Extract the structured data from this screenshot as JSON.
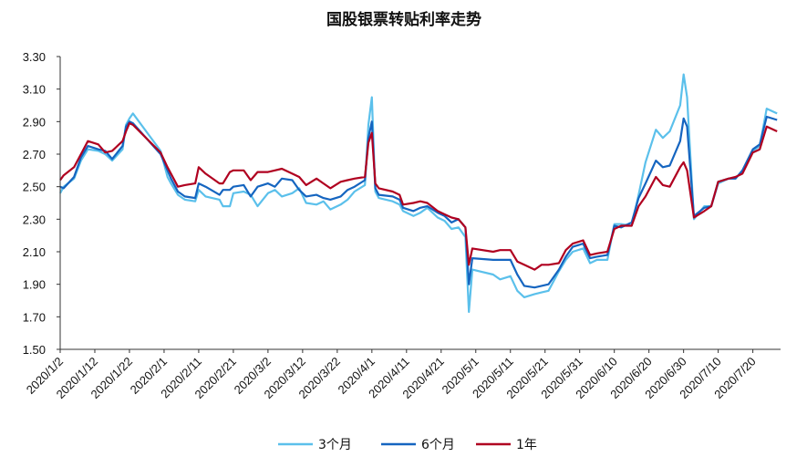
{
  "chart_data": {
    "type": "line",
    "title": "国股银票转贴利率走势",
    "xlabel": "",
    "ylabel": "",
    "ylim": [
      1.5,
      3.3
    ],
    "yticks": [
      "1.50",
      "1.70",
      "1.90",
      "2.10",
      "2.30",
      "2.50",
      "2.70",
      "2.90",
      "3.10",
      "3.30"
    ],
    "xticks": [
      "2020/1/2",
      "2020/1/12",
      "2020/1/22",
      "2020/2/1",
      "2020/2/11",
      "2020/2/21",
      "2020/3/2",
      "2020/3/12",
      "2020/3/22",
      "2020/4/1",
      "2020/4/11",
      "2020/4/21",
      "2020/5/1",
      "2020/5/11",
      "2020/5/21",
      "2020/5/31",
      "2020/6/10",
      "2020/6/20",
      "2020/6/30",
      "2020/7/10",
      "2020/7/20"
    ],
    "grid": false,
    "legend": "bottom",
    "colors": {
      "3m": "#5bc0eb",
      "6m": "#1565c0",
      "1y": "#b00020"
    },
    "series": [
      {
        "name": "3个月",
        "color": "#5bc0eb",
        "x": [
          "2020/1/2",
          "2020/1/3",
          "2020/1/6",
          "2020/1/8",
          "2020/1/10",
          "2020/1/13",
          "2020/1/15",
          "2020/1/17",
          "2020/1/20",
          "2020/1/21",
          "2020/1/22",
          "2020/1/23",
          "2020/1/31",
          "2020/2/2",
          "2020/2/3",
          "2020/2/5",
          "2020/2/7",
          "2020/2/10",
          "2020/2/11",
          "2020/2/13",
          "2020/2/17",
          "2020/2/18",
          "2020/2/20",
          "2020/2/21",
          "2020/2/24",
          "2020/2/26",
          "2020/2/28",
          "2020/3/2",
          "2020/3/4",
          "2020/3/6",
          "2020/3/9",
          "2020/3/11",
          "2020/3/13",
          "2020/3/16",
          "2020/3/18",
          "2020/3/20",
          "2020/3/23",
          "2020/3/25",
          "2020/3/27",
          "2020/3/30",
          "2020/3/31",
          "2020/4/1",
          "2020/4/2",
          "2020/4/3",
          "2020/4/7",
          "2020/4/9",
          "2020/4/10",
          "2020/4/13",
          "2020/4/15",
          "2020/4/17",
          "2020/4/20",
          "2020/4/22",
          "2020/4/24",
          "2020/4/26",
          "2020/4/28",
          "2020/4/29",
          "2020/4/30",
          "2020/5/6",
          "2020/5/8",
          "2020/5/11",
          "2020/5/13",
          "2020/5/15",
          "2020/5/18",
          "2020/5/20",
          "2020/5/22",
          "2020/5/25",
          "2020/5/27",
          "2020/5/29",
          "2020/6/1",
          "2020/6/3",
          "2020/6/5",
          "2020/6/8",
          "2020/6/10",
          "2020/6/12",
          "2020/6/15",
          "2020/6/17",
          "2020/6/19",
          "2020/6/22",
          "2020/6/24",
          "2020/6/26",
          "2020/6/29",
          "2020/6/30",
          "2020/7/1",
          "2020/7/3",
          "2020/7/6",
          "2020/7/8",
          "2020/7/10",
          "2020/7/13",
          "2020/7/15",
          "2020/7/17",
          "2020/7/20",
          "2020/7/22",
          "2020/7/24",
          "2020/7/27"
        ],
        "values": [
          2.46,
          2.5,
          2.55,
          2.66,
          2.73,
          2.72,
          2.7,
          2.66,
          2.73,
          2.88,
          2.92,
          2.95,
          2.72,
          2.56,
          2.52,
          2.45,
          2.42,
          2.41,
          2.48,
          2.44,
          2.42,
          2.38,
          2.38,
          2.46,
          2.47,
          2.45,
          2.38,
          2.46,
          2.48,
          2.44,
          2.46,
          2.49,
          2.4,
          2.39,
          2.41,
          2.36,
          2.39,
          2.42,
          2.47,
          2.51,
          2.88,
          3.05,
          2.47,
          2.43,
          2.41,
          2.39,
          2.35,
          2.32,
          2.34,
          2.37,
          2.31,
          2.29,
          2.24,
          2.25,
          2.19,
          1.73,
          1.99,
          1.96,
          1.93,
          1.95,
          1.86,
          1.82,
          1.84,
          1.85,
          1.86,
          1.98,
          2.05,
          2.1,
          2.12,
          2.03,
          2.05,
          2.05,
          2.27,
          2.27,
          2.26,
          2.45,
          2.65,
          2.85,
          2.8,
          2.84,
          3.0,
          3.19,
          3.05,
          2.3,
          2.38,
          2.38,
          2.52,
          2.55,
          2.55,
          2.6,
          2.72,
          2.75,
          2.98,
          2.95
        ]
      },
      {
        "name": "6个月",
        "color": "#1565c0",
        "x": [
          "2020/1/2",
          "2020/1/3",
          "2020/1/6",
          "2020/1/8",
          "2020/1/10",
          "2020/1/13",
          "2020/1/15",
          "2020/1/17",
          "2020/1/20",
          "2020/1/21",
          "2020/1/22",
          "2020/1/23",
          "2020/1/31",
          "2020/2/2",
          "2020/2/3",
          "2020/2/5",
          "2020/2/7",
          "2020/2/10",
          "2020/2/11",
          "2020/2/13",
          "2020/2/17",
          "2020/2/18",
          "2020/2/20",
          "2020/2/21",
          "2020/2/24",
          "2020/2/26",
          "2020/2/28",
          "2020/3/2",
          "2020/3/4",
          "2020/3/6",
          "2020/3/9",
          "2020/3/11",
          "2020/3/13",
          "2020/3/16",
          "2020/3/18",
          "2020/3/20",
          "2020/3/23",
          "2020/3/25",
          "2020/3/27",
          "2020/3/30",
          "2020/3/31",
          "2020/4/1",
          "2020/4/2",
          "2020/4/3",
          "2020/4/7",
          "2020/4/9",
          "2020/4/10",
          "2020/4/13",
          "2020/4/15",
          "2020/4/17",
          "2020/4/20",
          "2020/4/22",
          "2020/4/24",
          "2020/4/26",
          "2020/4/28",
          "2020/4/29",
          "2020/4/30",
          "2020/5/6",
          "2020/5/8",
          "2020/5/11",
          "2020/5/13",
          "2020/5/15",
          "2020/5/18",
          "2020/5/20",
          "2020/5/22",
          "2020/5/25",
          "2020/5/27",
          "2020/5/29",
          "2020/6/1",
          "2020/6/3",
          "2020/6/5",
          "2020/6/8",
          "2020/6/10",
          "2020/6/12",
          "2020/6/15",
          "2020/6/17",
          "2020/6/19",
          "2020/6/22",
          "2020/6/24",
          "2020/6/26",
          "2020/6/29",
          "2020/6/30",
          "2020/7/1",
          "2020/7/3",
          "2020/7/6",
          "2020/7/8",
          "2020/7/10",
          "2020/7/13",
          "2020/7/15",
          "2020/7/17",
          "2020/7/20",
          "2020/7/22",
          "2020/7/24",
          "2020/7/27"
        ],
        "values": [
          2.5,
          2.49,
          2.56,
          2.68,
          2.75,
          2.73,
          2.72,
          2.67,
          2.75,
          2.87,
          2.9,
          2.89,
          2.7,
          2.6,
          2.55,
          2.47,
          2.44,
          2.43,
          2.52,
          2.5,
          2.45,
          2.48,
          2.48,
          2.5,
          2.51,
          2.44,
          2.5,
          2.52,
          2.5,
          2.55,
          2.54,
          2.48,
          2.44,
          2.45,
          2.43,
          2.42,
          2.44,
          2.48,
          2.5,
          2.54,
          2.8,
          2.9,
          2.49,
          2.45,
          2.44,
          2.42,
          2.37,
          2.35,
          2.37,
          2.38,
          2.34,
          2.32,
          2.28,
          2.3,
          2.25,
          1.9,
          2.06,
          2.05,
          2.05,
          2.05,
          1.96,
          1.89,
          1.88,
          1.89,
          1.9,
          1.99,
          2.07,
          2.13,
          2.15,
          2.06,
          2.07,
          2.08,
          2.26,
          2.25,
          2.28,
          2.43,
          2.52,
          2.66,
          2.62,
          2.63,
          2.78,
          2.92,
          2.87,
          2.32,
          2.37,
          2.38,
          2.53,
          2.55,
          2.55,
          2.6,
          2.73,
          2.76,
          2.93,
          2.91
        ]
      },
      {
        "name": "1年",
        "color": "#b00020",
        "x": [
          "2020/1/2",
          "2020/1/3",
          "2020/1/6",
          "2020/1/8",
          "2020/1/10",
          "2020/1/13",
          "2020/1/15",
          "2020/1/17",
          "2020/1/20",
          "2020/1/21",
          "2020/1/22",
          "2020/1/23",
          "2020/1/31",
          "2020/2/2",
          "2020/2/3",
          "2020/2/5",
          "2020/2/7",
          "2020/2/10",
          "2020/2/11",
          "2020/2/13",
          "2020/2/17",
          "2020/2/18",
          "2020/2/20",
          "2020/2/21",
          "2020/2/24",
          "2020/2/26",
          "2020/2/28",
          "2020/3/2",
          "2020/3/4",
          "2020/3/6",
          "2020/3/9",
          "2020/3/11",
          "2020/3/13",
          "2020/3/16",
          "2020/3/18",
          "2020/3/20",
          "2020/3/23",
          "2020/3/25",
          "2020/3/27",
          "2020/3/30",
          "2020/3/31",
          "2020/4/1",
          "2020/4/2",
          "2020/4/3",
          "2020/4/7",
          "2020/4/9",
          "2020/4/10",
          "2020/4/13",
          "2020/4/15",
          "2020/4/17",
          "2020/4/20",
          "2020/4/22",
          "2020/4/24",
          "2020/4/26",
          "2020/4/28",
          "2020/4/29",
          "2020/4/30",
          "2020/5/6",
          "2020/5/8",
          "2020/5/11",
          "2020/5/13",
          "2020/5/15",
          "2020/5/18",
          "2020/5/20",
          "2020/5/22",
          "2020/5/25",
          "2020/5/27",
          "2020/5/29",
          "2020/6/1",
          "2020/6/3",
          "2020/6/5",
          "2020/6/8",
          "2020/6/10",
          "2020/6/12",
          "2020/6/15",
          "2020/6/17",
          "2020/6/19",
          "2020/6/22",
          "2020/6/24",
          "2020/6/26",
          "2020/6/29",
          "2020/6/30",
          "2020/7/1",
          "2020/7/3",
          "2020/7/6",
          "2020/7/8",
          "2020/7/10",
          "2020/7/13",
          "2020/7/15",
          "2020/7/17",
          "2020/7/20",
          "2020/7/22",
          "2020/7/24",
          "2020/7/27"
        ],
        "values": [
          2.54,
          2.57,
          2.62,
          2.7,
          2.78,
          2.76,
          2.71,
          2.72,
          2.78,
          2.84,
          2.89,
          2.88,
          2.71,
          2.62,
          2.58,
          2.5,
          2.51,
          2.52,
          2.62,
          2.58,
          2.52,
          2.52,
          2.59,
          2.6,
          2.6,
          2.54,
          2.59,
          2.59,
          2.6,
          2.61,
          2.58,
          2.56,
          2.51,
          2.55,
          2.52,
          2.49,
          2.53,
          2.54,
          2.55,
          2.56,
          2.77,
          2.83,
          2.52,
          2.49,
          2.47,
          2.45,
          2.39,
          2.4,
          2.41,
          2.4,
          2.35,
          2.33,
          2.31,
          2.3,
          2.25,
          2.02,
          2.12,
          2.1,
          2.11,
          2.11,
          2.04,
          2.02,
          1.99,
          2.02,
          2.02,
          2.03,
          2.11,
          2.15,
          2.17,
          2.08,
          2.09,
          2.1,
          2.24,
          2.26,
          2.26,
          2.38,
          2.44,
          2.56,
          2.51,
          2.5,
          2.62,
          2.65,
          2.6,
          2.31,
          2.35,
          2.38,
          2.53,
          2.55,
          2.56,
          2.58,
          2.71,
          2.73,
          2.87,
          2.84
        ]
      }
    ]
  }
}
